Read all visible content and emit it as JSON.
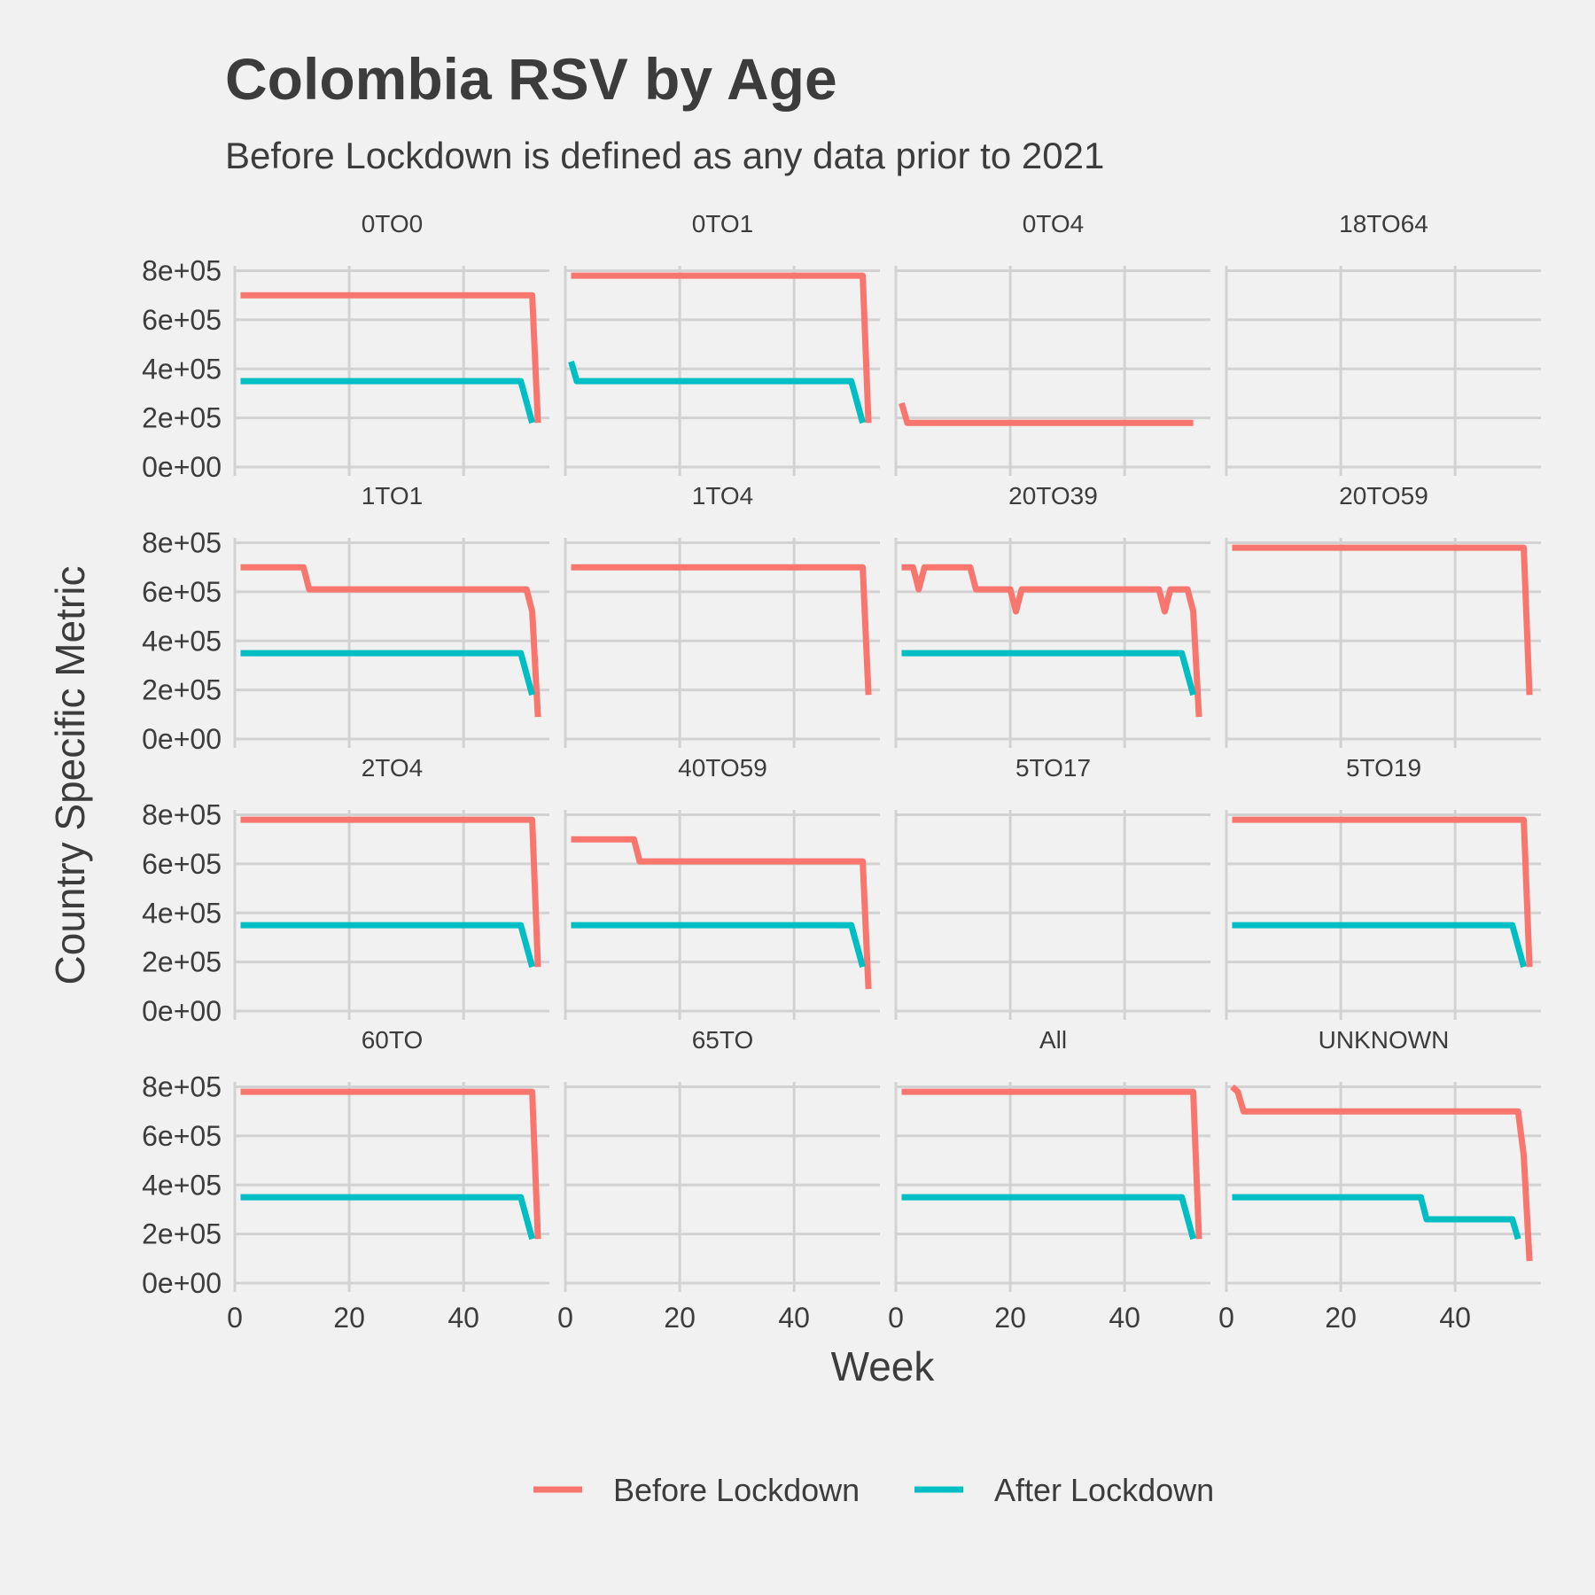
{
  "chart_data": {
    "type": "line",
    "title": "Colombia RSV by Age",
    "subtitle": "Before Lockdown is defined as any data prior to 2021",
    "xlabel": "Week",
    "ylabel": "Country Specific Metric",
    "xlim": [
      0,
      55
    ],
    "ylim": [
      0,
      820000
    ],
    "x_ticks": [
      0,
      20,
      40
    ],
    "x_tick_labels": [
      "0",
      "20",
      "40"
    ],
    "y_ticks": [
      0,
      200000,
      400000,
      600000,
      800000
    ],
    "y_tick_labels": [
      "0e+00",
      "2e+05",
      "4e+05",
      "6e+05",
      "8e+05"
    ],
    "grid": true,
    "legend_position": "bottom",
    "legend": [
      {
        "name": "Before Lockdown",
        "color": "#f8766d"
      },
      {
        "name": "After Lockdown",
        "color": "#00bfc4"
      }
    ],
    "panels": [
      {
        "label": "0TO0",
        "before": [
          [
            1,
            700000
          ],
          [
            52,
            700000
          ],
          [
            53,
            180000
          ]
        ],
        "after": [
          [
            1,
            350000
          ],
          [
            50,
            350000
          ],
          [
            52,
            180000
          ]
        ]
      },
      {
        "label": "0TO1",
        "before": [
          [
            1,
            780000
          ],
          [
            52,
            780000
          ],
          [
            53,
            180000
          ]
        ],
        "after": [
          [
            1,
            430000
          ],
          [
            2,
            350000
          ],
          [
            50,
            350000
          ],
          [
            52,
            180000
          ]
        ]
      },
      {
        "label": "0TO4",
        "before": [
          [
            1,
            260000
          ],
          [
            2,
            180000
          ],
          [
            52,
            180000
          ]
        ],
        "after": []
      },
      {
        "label": "18TO64",
        "before": [],
        "after": []
      },
      {
        "label": "1TO1",
        "before": [
          [
            1,
            700000
          ],
          [
            12,
            700000
          ],
          [
            13,
            610000
          ],
          [
            51,
            610000
          ],
          [
            52,
            520000
          ],
          [
            53,
            90000
          ]
        ],
        "after": [
          [
            1,
            350000
          ],
          [
            50,
            350000
          ],
          [
            52,
            180000
          ]
        ]
      },
      {
        "label": "1TO4",
        "before": [
          [
            1,
            700000
          ],
          [
            52,
            700000
          ],
          [
            53,
            180000
          ]
        ],
        "after": []
      },
      {
        "label": "20TO39",
        "before": [
          [
            1,
            700000
          ],
          [
            3,
            700000
          ],
          [
            4,
            610000
          ],
          [
            5,
            700000
          ],
          [
            13,
            700000
          ],
          [
            14,
            610000
          ],
          [
            20,
            610000
          ],
          [
            21,
            520000
          ],
          [
            22,
            610000
          ],
          [
            46,
            610000
          ],
          [
            47,
            520000
          ],
          [
            48,
            610000
          ],
          [
            51,
            610000
          ],
          [
            52,
            520000
          ],
          [
            53,
            90000
          ]
        ],
        "after": [
          [
            1,
            350000
          ],
          [
            50,
            350000
          ],
          [
            52,
            180000
          ]
        ]
      },
      {
        "label": "20TO59",
        "before": [
          [
            1,
            780000
          ],
          [
            52,
            780000
          ],
          [
            53,
            180000
          ]
        ],
        "after": []
      },
      {
        "label": "2TO4",
        "before": [
          [
            1,
            780000
          ],
          [
            52,
            780000
          ],
          [
            53,
            180000
          ]
        ],
        "after": [
          [
            1,
            350000
          ],
          [
            50,
            350000
          ],
          [
            52,
            180000
          ]
        ]
      },
      {
        "label": "40TO59",
        "before": [
          [
            1,
            700000
          ],
          [
            12,
            700000
          ],
          [
            13,
            610000
          ],
          [
            52,
            610000
          ],
          [
            53,
            90000
          ]
        ],
        "after": [
          [
            1,
            350000
          ],
          [
            50,
            350000
          ],
          [
            52,
            180000
          ]
        ]
      },
      {
        "label": "5TO17",
        "before": [],
        "after": []
      },
      {
        "label": "5TO19",
        "before": [
          [
            1,
            780000
          ],
          [
            52,
            780000
          ],
          [
            53,
            180000
          ]
        ],
        "after": [
          [
            1,
            350000
          ],
          [
            50,
            350000
          ],
          [
            52,
            180000
          ]
        ]
      },
      {
        "label": "60TO",
        "before": [
          [
            1,
            780000
          ],
          [
            52,
            780000
          ],
          [
            53,
            180000
          ]
        ],
        "after": [
          [
            1,
            350000
          ],
          [
            50,
            350000
          ],
          [
            52,
            180000
          ]
        ]
      },
      {
        "label": "65TO",
        "before": [],
        "after": []
      },
      {
        "label": "All",
        "before": [
          [
            1,
            780000
          ],
          [
            52,
            780000
          ],
          [
            53,
            180000
          ]
        ],
        "after": [
          [
            1,
            350000
          ],
          [
            50,
            350000
          ],
          [
            52,
            180000
          ]
        ]
      },
      {
        "label": "UNKNOWN",
        "before": [
          [
            1,
            800000
          ],
          [
            2,
            780000
          ],
          [
            3,
            700000
          ],
          [
            51,
            700000
          ],
          [
            52,
            520000
          ],
          [
            53,
            90000
          ]
        ],
        "after": [
          [
            1,
            350000
          ],
          [
            34,
            350000
          ],
          [
            35,
            260000
          ],
          [
            50,
            260000
          ],
          [
            51,
            180000
          ]
        ]
      }
    ]
  }
}
